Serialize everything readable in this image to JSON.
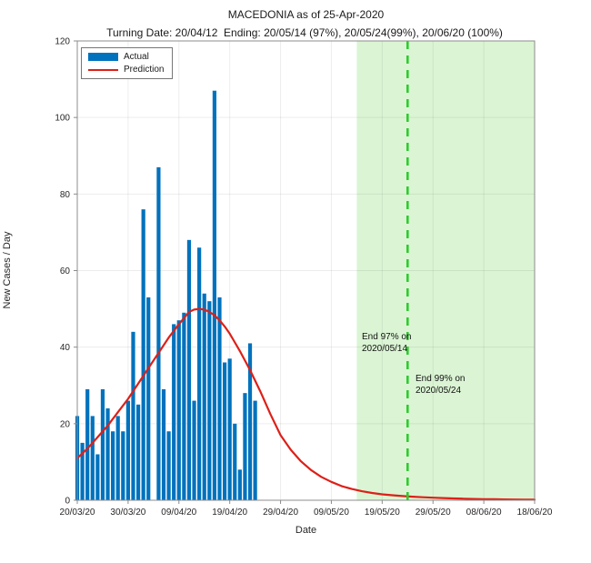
{
  "title": "MACEDONIA as of 25-Apr-2020",
  "subtitle": "Turning Date: 20/04/12  Ending: 20/05/14 (97%), 20/05/24(99%), 20/06/20 (100%)",
  "colors": {
    "bar": "#0072BD",
    "prediction_line": "#dd2018",
    "event_line_green": "#2ecb2e",
    "shaded_region_green": "#dbf5d4",
    "axis": "#8c8c8c",
    "tick_text": "#262626",
    "grid": "rgba(0,0,0,0.075)"
  },
  "chart_data": {
    "type": "bar+line",
    "title": "MACEDONIA as of 25-Apr-2020",
    "subtitle": "Turning Date: 20/04/12  Ending: 20/05/14 (97%), 20/05/24(99%), 20/06/20 (100%)",
    "xlabel": "Date",
    "ylabel": "New Cases / Day",
    "ylim": [
      0,
      120
    ],
    "yticks": [
      0,
      20,
      40,
      60,
      80,
      100,
      120
    ],
    "xtick_labels": [
      "20/03/20",
      "30/03/20",
      "09/04/20",
      "19/04/20",
      "29/04/20",
      "09/05/20",
      "19/05/20",
      "29/05/20",
      "08/06/20",
      "18/06/20"
    ],
    "xtick_days": [
      0,
      10,
      20,
      30,
      40,
      50,
      60,
      70,
      80,
      90
    ],
    "x_range_days": [
      0,
      90
    ],
    "grid": true,
    "legend_position": "top-left-inside",
    "legend": [
      {
        "label": "Actual",
        "type": "bar"
      },
      {
        "label": "Prediction",
        "type": "line"
      }
    ],
    "actual": {
      "dates": [
        "20/03/20",
        "21/03/20",
        "22/03/20",
        "23/03/20",
        "24/03/20",
        "25/03/20",
        "26/03/20",
        "27/03/20",
        "28/03/20",
        "29/03/20",
        "30/03/20",
        "31/03/20",
        "01/04/20",
        "02/04/20",
        "03/04/20",
        "04/04/20",
        "05/04/20",
        "06/04/20",
        "07/04/20",
        "08/04/20",
        "09/04/20",
        "10/04/20",
        "11/04/20",
        "12/04/20",
        "13/04/20",
        "14/04/20",
        "15/04/20",
        "16/04/20",
        "17/04/20",
        "18/04/20",
        "19/04/20",
        "20/04/20",
        "21/04/20",
        "22/04/20",
        "23/04/20",
        "24/04/20"
      ],
      "values": [
        22,
        15,
        29,
        22,
        12,
        29,
        24,
        18,
        22,
        18,
        26,
        44,
        25,
        76,
        53,
        0,
        87,
        29,
        18,
        46,
        47,
        49,
        68,
        26,
        66,
        54,
        52,
        107,
        53,
        36,
        37,
        20,
        8,
        28,
        41,
        26
      ]
    },
    "prediction": {
      "days": [
        0,
        2,
        4,
        6,
        8,
        10,
        12,
        14,
        16,
        18,
        20,
        22,
        23,
        24,
        25,
        26,
        27,
        28,
        29,
        30,
        32,
        34,
        36,
        38,
        40,
        42,
        44,
        46,
        48,
        50,
        52,
        54,
        56,
        58,
        60,
        62,
        64,
        66,
        68,
        70,
        72,
        74,
        76,
        78,
        80,
        82,
        84,
        86,
        88,
        90
      ],
      "values": [
        11,
        13.5,
        16.5,
        19.5,
        23,
        26.5,
        30.5,
        34.5,
        38.5,
        42.5,
        46,
        49.2,
        49.8,
        50,
        49.8,
        49.2,
        48.3,
        47,
        45.4,
        43.5,
        39,
        34,
        28.5,
        22.5,
        17,
        13.2,
        10.2,
        7.9,
        6.1,
        4.8,
        3.7,
        2.95,
        2.35,
        1.9,
        1.55,
        1.3,
        1.1,
        0.92,
        0.78,
        0.66,
        0.56,
        0.47,
        0.4,
        0.34,
        0.29,
        0.25,
        0.21,
        0.18,
        0.16,
        0.14
      ],
      "peak_value": 50,
      "peak_day_label": "12/04/20"
    },
    "shaded_region": {
      "start_day": 55,
      "end_day": 90
    },
    "event_line": {
      "day": 65,
      "style": "dashed"
    },
    "annotations": [
      {
        "lines": [
          "End 97% on",
          "2020/05/14"
        ],
        "day": 56.0,
        "value": 44.3
      },
      {
        "lines": [
          "End 99% on",
          "2020/05/24"
        ],
        "day": 66.6,
        "value": 33.3
      }
    ]
  }
}
